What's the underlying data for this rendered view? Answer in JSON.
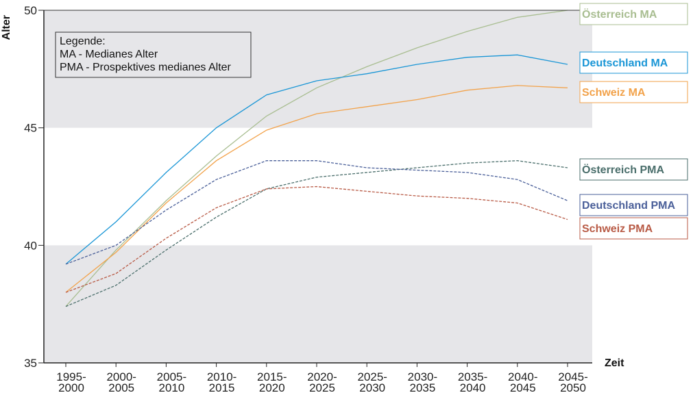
{
  "chart_data": {
    "type": "line",
    "ylabel": "Alter",
    "xlabel": "Zeit",
    "ylim": [
      35,
      50
    ],
    "yticks": [
      "35",
      "40",
      "45",
      "50"
    ],
    "grid": false,
    "bands": [
      {
        "from": 35,
        "to": 40,
        "color": "#e6e6e9"
      },
      {
        "from": 45,
        "to": 50,
        "color": "#e6e6e9"
      }
    ],
    "x_ticks": [
      {
        "line1": "1995-",
        "line2": "2000"
      },
      {
        "line1": "2000-",
        "line2": "2005"
      },
      {
        "line1": "2005-",
        "line2": "2010"
      },
      {
        "line1": "2010-",
        "line2": "2015"
      },
      {
        "line1": "2015-",
        "line2": "2020"
      },
      {
        "line1": "2020-",
        "line2": "2025"
      },
      {
        "line1": "2025-",
        "line2": "2030"
      },
      {
        "line1": "2030-",
        "line2": "2035"
      },
      {
        "line1": "2035-",
        "line2": "2040"
      },
      {
        "line1": "2040-",
        "line2": "2045"
      },
      {
        "line1": "2045-",
        "line2": "2050"
      }
    ],
    "legend": {
      "placement": "top-left",
      "lines": [
        "Legende:",
        "MA - Medianes Alter",
        "PMA - Prospektives medianes Alter"
      ]
    },
    "series": [
      {
        "name": "Österreich MA",
        "color": "#a8bd90",
        "style": "solid",
        "values": [
          37.4,
          39.8,
          41.9,
          43.8,
          45.5,
          46.7,
          47.6,
          48.4,
          49.1,
          49.7,
          50.0
        ]
      },
      {
        "name": "Deutschland MA",
        "color": "#1a96d6",
        "style": "solid",
        "values": [
          39.2,
          41.0,
          43.1,
          45.0,
          46.4,
          47.0,
          47.3,
          47.7,
          48.0,
          48.1,
          47.7
        ]
      },
      {
        "name": "Schweiz MA",
        "color": "#f2a24a",
        "style": "solid",
        "values": [
          38.0,
          39.7,
          41.8,
          43.6,
          44.9,
          45.6,
          45.9,
          46.2,
          46.6,
          46.8,
          46.7
        ]
      },
      {
        "name": "Österreich PMA",
        "color": "#4a6e6b",
        "style": "dashed",
        "values": [
          37.4,
          38.3,
          39.8,
          41.2,
          42.4,
          42.9,
          43.1,
          43.3,
          43.5,
          43.6,
          43.3
        ]
      },
      {
        "name": "Deutschland PMA",
        "color": "#4a5f99",
        "style": "dashed",
        "values": [
          39.2,
          40.0,
          41.5,
          42.8,
          43.6,
          43.6,
          43.3,
          43.2,
          43.1,
          42.8,
          41.9
        ]
      },
      {
        "name": "Schweiz PMA",
        "color": "#b85a45",
        "style": "dashed",
        "values": [
          38.0,
          38.8,
          40.3,
          41.6,
          42.4,
          42.5,
          42.3,
          42.1,
          42.0,
          41.8,
          41.1
        ]
      }
    ]
  }
}
